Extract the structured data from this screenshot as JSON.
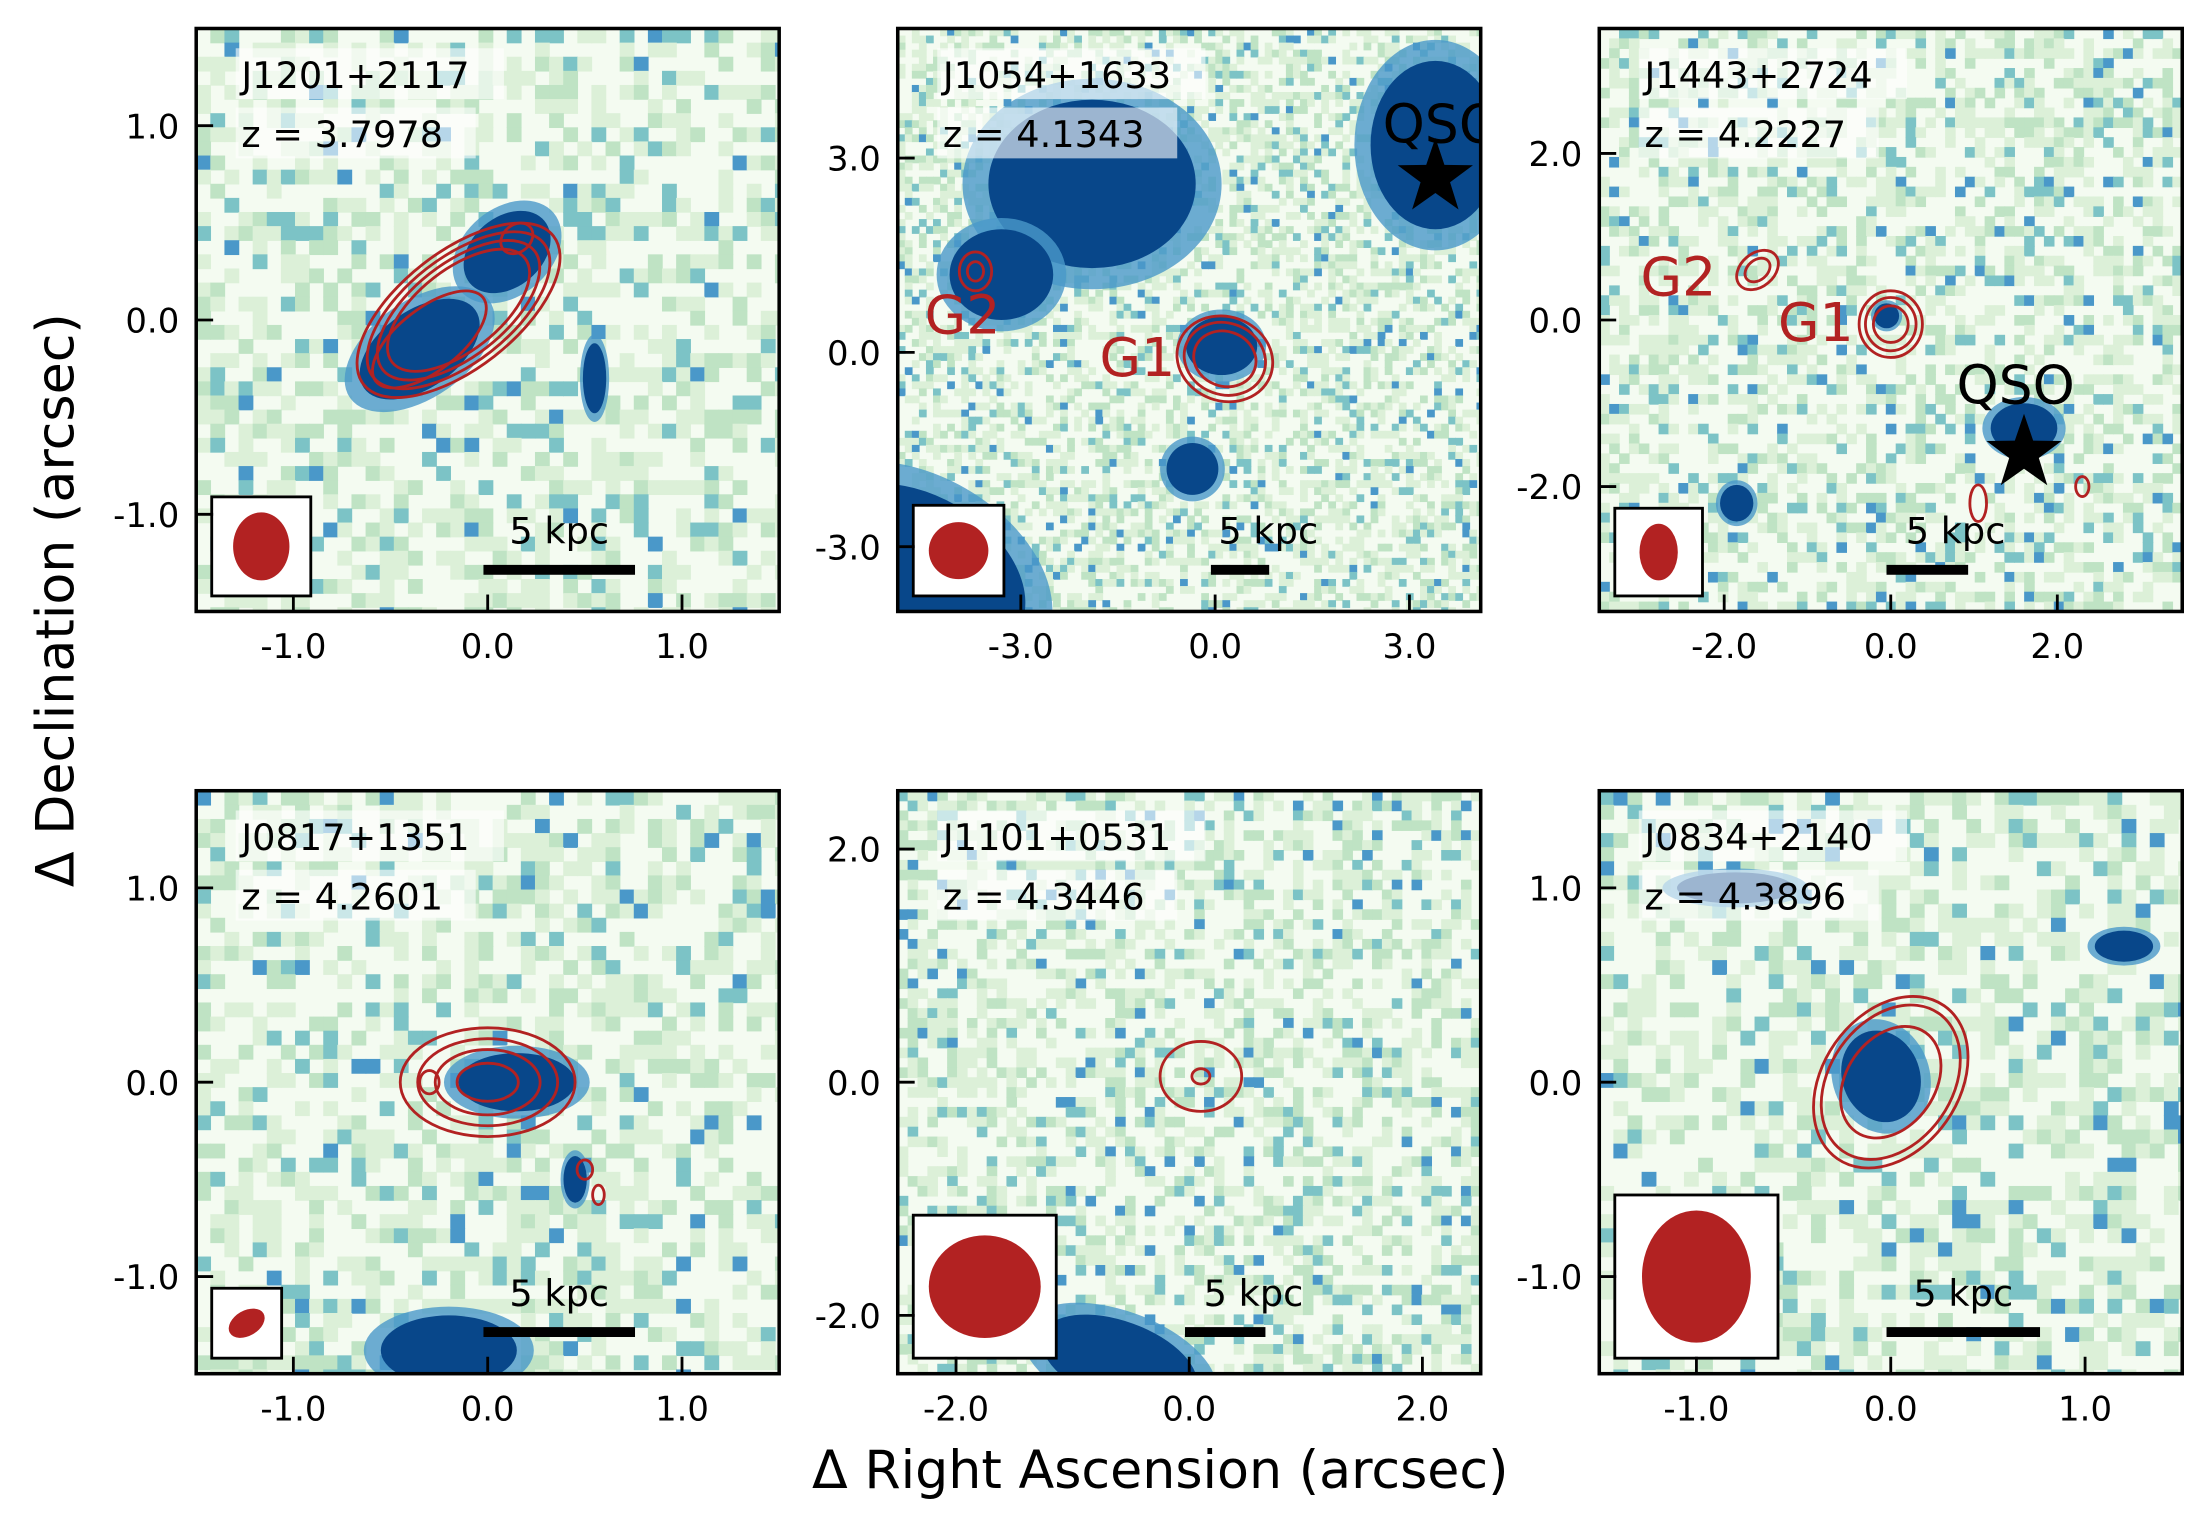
{
  "chart_data": {
    "type": "heatmap",
    "xlabel": "Δ Right Ascension (arcsec)",
    "ylabel": "Δ Declination (arcsec)",
    "colors": {
      "image_low": "#f4fbf1",
      "image_mid": "#bfe3c4",
      "image_high": "#4a98c9",
      "image_peak": "#08478a",
      "contour": "#b22222",
      "beam": "#b22222",
      "marker": "#000000"
    },
    "panels": [
      {
        "name": "J1201+2117",
        "redshift_label": "z = 3.7978",
        "xlim": [
          -1.5,
          1.5
        ],
        "ylim": [
          -1.5,
          1.5
        ],
        "xticks": [
          -1.0,
          0.0,
          1.0
        ],
        "xtick_labels": [
          "-1.0",
          "0.0",
          "1.0"
        ],
        "yticks": [
          -1.0,
          0.0,
          1.0
        ],
        "ytick_labels": [
          "-1.0",
          "0.0",
          "1.0"
        ],
        "scalebar_label": "5 kpc",
        "scalebar_arcsec": 0.78,
        "beam_arcsec": [
          0.145,
          0.175,
          0
        ],
        "bright_regions": [
          {
            "x": -0.35,
            "y": -0.15,
            "rx": 0.35,
            "ry": 0.2,
            "angle": -35
          },
          {
            "x": 0.1,
            "y": 0.35,
            "rx": 0.25,
            "ry": 0.18,
            "angle": -40
          },
          {
            "x": 0.55,
            "y": -0.3,
            "rx": 0.06,
            "ry": 0.18,
            "angle": 0
          }
        ],
        "contours": [
          {
            "x": -0.15,
            "y": 0.05,
            "rx": 0.62,
            "ry": 0.3,
            "angle": -38,
            "levels": [
              1,
              0.9,
              0.8,
              0.7
            ]
          },
          {
            "x": -0.3,
            "y": -0.1,
            "rx": 0.35,
            "ry": 0.16,
            "angle": -38,
            "levels": [
              1
            ]
          },
          {
            "x": 0.15,
            "y": 0.42,
            "rx": 0.09,
            "ry": 0.07,
            "angle": -40,
            "levels": [
              1
            ]
          }
        ],
        "labels": [],
        "markers": []
      },
      {
        "name": "J1054+1633",
        "redshift_label": "z = 4.1343",
        "xlim": [
          -4.9,
          4.1
        ],
        "ylim": [
          -4.0,
          5.0
        ],
        "xticks": [
          -3.0,
          0.0,
          3.0
        ],
        "xtick_labels": [
          "-3.0",
          "0.0",
          "3.0"
        ],
        "yticks": [
          -3.0,
          0.0,
          3.0
        ],
        "ytick_labels": [
          "-3.0",
          "0.0",
          "3.0"
        ],
        "scalebar_label": "5 kpc",
        "scalebar_arcsec": 0.9,
        "beam_arcsec": [
          0.46,
          0.44,
          0
        ],
        "bright_regions": [
          {
            "x": -1.9,
            "y": 2.6,
            "rx": 1.6,
            "ry": 1.3,
            "angle": 0
          },
          {
            "x": -3.3,
            "y": 1.2,
            "rx": 0.8,
            "ry": 0.7,
            "angle": 0
          },
          {
            "x": 3.4,
            "y": 3.2,
            "rx": 1.0,
            "ry": 1.3,
            "angle": 0
          },
          {
            "x": -4.6,
            "y": -3.4,
            "rx": 1.8,
            "ry": 1.2,
            "angle": 30
          },
          {
            "x": 0.1,
            "y": 0.1,
            "rx": 0.55,
            "ry": 0.45,
            "angle": 0
          },
          {
            "x": -0.35,
            "y": -1.8,
            "rx": 0.4,
            "ry": 0.4,
            "angle": 0
          }
        ],
        "contours": [
          {
            "x": 0.15,
            "y": -0.1,
            "rx": 0.75,
            "ry": 0.65,
            "angle": 20,
            "levels": [
              1,
              0.85,
              0.65
            ]
          },
          {
            "x": -3.7,
            "y": 1.25,
            "rx": 0.25,
            "ry": 0.3,
            "angle": 0,
            "levels": [
              1,
              0.5
            ]
          }
        ],
        "labels": [
          {
            "text": "G1",
            "x": -1.2,
            "y": -0.1,
            "color": "#b22222"
          },
          {
            "text": "G2",
            "x": -3.9,
            "y": 0.55,
            "color": "#b22222"
          },
          {
            "text": "QSO",
            "x": 3.5,
            "y": 3.5,
            "color": "#000000"
          }
        ],
        "markers": [
          {
            "type": "star",
            "x": 3.4,
            "y": 2.7
          }
        ]
      },
      {
        "name": "J1443+2724",
        "redshift_label": "z = 4.2227",
        "xlim": [
          -3.5,
          3.5
        ],
        "ylim": [
          -3.5,
          3.5
        ],
        "xticks": [
          -2.0,
          0.0,
          2.0
        ],
        "xtick_labels": [
          "-2.0",
          "0.0",
          "2.0"
        ],
        "yticks": [
          -2.0,
          0.0,
          2.0
        ],
        "ytick_labels": [
          "-2.0",
          "0.0",
          "2.0"
        ],
        "scalebar_label": "5 kpc",
        "scalebar_arcsec": 0.98,
        "beam_arcsec": [
          0.23,
          0.34,
          0
        ],
        "bright_regions": [
          {
            "x": -0.05,
            "y": 0.05,
            "rx": 0.15,
            "ry": 0.15,
            "angle": 0
          },
          {
            "x": 1.6,
            "y": -1.3,
            "rx": 0.4,
            "ry": 0.3,
            "angle": 0
          },
          {
            "x": -1.85,
            "y": -2.2,
            "rx": 0.2,
            "ry": 0.22,
            "angle": 0
          }
        ],
        "contours": [
          {
            "x": -1.6,
            "y": 0.6,
            "rx": 0.28,
            "ry": 0.2,
            "angle": -40,
            "levels": [
              1,
              0.6
            ]
          },
          {
            "x": 0.0,
            "y": -0.05,
            "rx": 0.38,
            "ry": 0.4,
            "angle": 0,
            "levels": [
              1,
              0.8,
              0.55
            ]
          },
          {
            "x": 1.05,
            "y": -2.2,
            "rx": 0.1,
            "ry": 0.22,
            "angle": 0,
            "levels": [
              1
            ]
          },
          {
            "x": 2.3,
            "y": -2.0,
            "rx": 0.08,
            "ry": 0.12,
            "angle": 0,
            "levels": [
              1
            ]
          }
        ],
        "labels": [
          {
            "text": "G2",
            "x": -2.55,
            "y": 0.5,
            "color": "#b22222"
          },
          {
            "text": "G1",
            "x": -0.9,
            "y": -0.05,
            "color": "#b22222"
          },
          {
            "text": "QSO",
            "x": 1.5,
            "y": -0.8,
            "color": "#000000"
          }
        ],
        "markers": [
          {
            "type": "star",
            "x": 1.6,
            "y": -1.6
          }
        ]
      },
      {
        "name": "J0817+1351",
        "redshift_label": "z = 4.2601",
        "xlim": [
          -1.5,
          1.5
        ],
        "ylim": [
          -1.5,
          1.5
        ],
        "xticks": [
          -1.0,
          0.0,
          1.0
        ],
        "xtick_labels": [
          "-1.0",
          "0.0",
          "1.0"
        ],
        "yticks": [
          -1.0,
          0.0,
          1.0
        ],
        "ytick_labels": [
          "-1.0",
          "0.0",
          "1.0"
        ],
        "scalebar_label": "5 kpc",
        "scalebar_arcsec": 0.78,
        "beam_arcsec": [
          0.1,
          0.065,
          -30
        ],
        "bright_regions": [
          {
            "x": 0.15,
            "y": 0.0,
            "rx": 0.3,
            "ry": 0.15,
            "angle": 0
          },
          {
            "x": -0.2,
            "y": -1.38,
            "rx": 0.35,
            "ry": 0.18,
            "angle": 0
          },
          {
            "x": 0.45,
            "y": -0.5,
            "rx": 0.06,
            "ry": 0.12,
            "angle": 0
          }
        ],
        "contours": [
          {
            "x": 0.0,
            "y": 0.0,
            "rx": 0.45,
            "ry": 0.28,
            "angle": 0,
            "levels": [
              1,
              0.8,
              0.6,
              0.35
            ]
          },
          {
            "x": -0.3,
            "y": 0.0,
            "rx": 0.05,
            "ry": 0.06,
            "angle": 0,
            "levels": [
              1
            ]
          },
          {
            "x": 0.5,
            "y": -0.45,
            "rx": 0.04,
            "ry": 0.05,
            "angle": 0,
            "levels": [
              1
            ]
          },
          {
            "x": 0.57,
            "y": -0.58,
            "rx": 0.03,
            "ry": 0.05,
            "angle": 0,
            "levels": [
              1
            ]
          }
        ],
        "labels": [],
        "markers": []
      },
      {
        "name": "J1101+0531",
        "redshift_label": "z = 4.3446",
        "xlim": [
          -2.5,
          2.5
        ],
        "ylim": [
          -2.5,
          2.5
        ],
        "xticks": [
          -2.0,
          0.0,
          2.0
        ],
        "xtick_labels": [
          "-2.0",
          "0.0",
          "2.0"
        ],
        "yticks": [
          -2.0,
          0.0,
          2.0
        ],
        "ytick_labels": [
          "-2.0",
          "0.0",
          "2.0"
        ],
        "scalebar_label": "5 kpc",
        "scalebar_arcsec": 0.69,
        "beam_arcsec": [
          0.48,
          0.44,
          0
        ],
        "bright_regions": [
          {
            "x": -0.6,
            "y": -2.4,
            "rx": 0.7,
            "ry": 0.35,
            "angle": 20
          }
        ],
        "contours": [
          {
            "x": 0.1,
            "y": 0.05,
            "rx": 0.35,
            "ry": 0.3,
            "angle": 0,
            "levels": [
              1,
              0.22
            ]
          }
        ],
        "labels": [],
        "markers": []
      },
      {
        "name": "J0834+2140",
        "redshift_label": "z = 4.3896",
        "xlim": [
          -1.5,
          1.5
        ],
        "ylim": [
          -1.5,
          1.5
        ],
        "xticks": [
          -1.0,
          0.0,
          1.0
        ],
        "xtick_labels": [
          "-1.0",
          "0.0",
          "1.0"
        ],
        "yticks": [
          -1.0,
          0.0,
          1.0
        ],
        "ytick_labels": [
          "-1.0",
          "0.0",
          "1.0"
        ],
        "scalebar_label": "5 kpc",
        "scalebar_arcsec": 0.79,
        "beam_arcsec": [
          0.28,
          0.34,
          0
        ],
        "bright_regions": [
          {
            "x": -0.05,
            "y": 0.03,
            "rx": 0.2,
            "ry": 0.24,
            "angle": -20
          },
          {
            "x": -0.8,
            "y": 1.0,
            "rx": 0.3,
            "ry": 0.08,
            "angle": 0
          },
          {
            "x": 1.2,
            "y": 0.7,
            "rx": 0.15,
            "ry": 0.08,
            "angle": 0
          }
        ],
        "contours": [
          {
            "x": 0.0,
            "y": 0.0,
            "rx": 0.35,
            "ry": 0.48,
            "angle": 35,
            "levels": [
              1,
              0.9,
              0.65
            ]
          }
        ],
        "labels": [],
        "markers": []
      }
    ]
  }
}
